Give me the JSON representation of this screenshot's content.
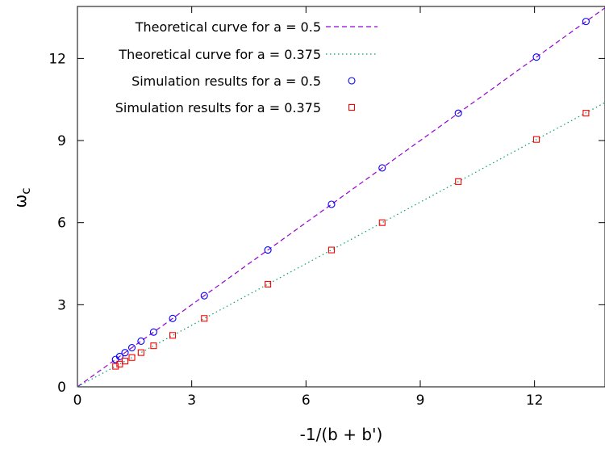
{
  "chart_data": {
    "type": "scatter",
    "xlabel": "-1/(b + b')",
    "ylabel": "ω",
    "ylabel_subscript": "c",
    "xlim": [
      0,
      13.85
    ],
    "ylim": [
      0,
      13.9
    ],
    "x_ticks": [
      0,
      3,
      6,
      9,
      12
    ],
    "y_ticks": [
      0,
      3,
      6,
      9,
      12
    ],
    "legend_position": "top-left",
    "grid": false,
    "series": [
      {
        "name": "Theoretical curve for a = 0.5",
        "kind": "line",
        "style": "dashed",
        "color": "#9400d3",
        "slope": 1.0,
        "x_range": [
          0,
          13.85
        ]
      },
      {
        "name": "Theoretical curve for a = 0.375",
        "kind": "line",
        "style": "dotted",
        "color": "#009e73",
        "slope": 0.75,
        "x_range": [
          0,
          13.85
        ]
      },
      {
        "name": "Simulation results for a = 0.5",
        "kind": "points",
        "marker": "circle",
        "color": "#0000ff",
        "points": [
          [
            1.0,
            1.0
          ],
          [
            1.11,
            1.11
          ],
          [
            1.25,
            1.25
          ],
          [
            1.43,
            1.43
          ],
          [
            1.67,
            1.67
          ],
          [
            2.0,
            2.0
          ],
          [
            2.5,
            2.5
          ],
          [
            3.33,
            3.33
          ],
          [
            5.0,
            5.0
          ],
          [
            6.67,
            6.67
          ],
          [
            8.0,
            8.0
          ],
          [
            10.0,
            10.0
          ],
          [
            12.05,
            12.05
          ],
          [
            13.35,
            13.35
          ]
        ]
      },
      {
        "name": "Simulation results for a = 0.375",
        "kind": "points",
        "marker": "square",
        "color": "#ff0000",
        "points": [
          [
            1.0,
            0.75
          ],
          [
            1.11,
            0.83
          ],
          [
            1.25,
            0.94
          ],
          [
            1.43,
            1.07
          ],
          [
            1.67,
            1.25
          ],
          [
            2.0,
            1.5
          ],
          [
            2.5,
            1.88
          ],
          [
            3.33,
            2.5
          ],
          [
            5.0,
            3.75
          ],
          [
            6.67,
            5.0
          ],
          [
            8.0,
            6.0
          ],
          [
            10.0,
            7.5
          ],
          [
            12.05,
            9.04
          ],
          [
            13.35,
            10.0
          ]
        ]
      }
    ]
  }
}
